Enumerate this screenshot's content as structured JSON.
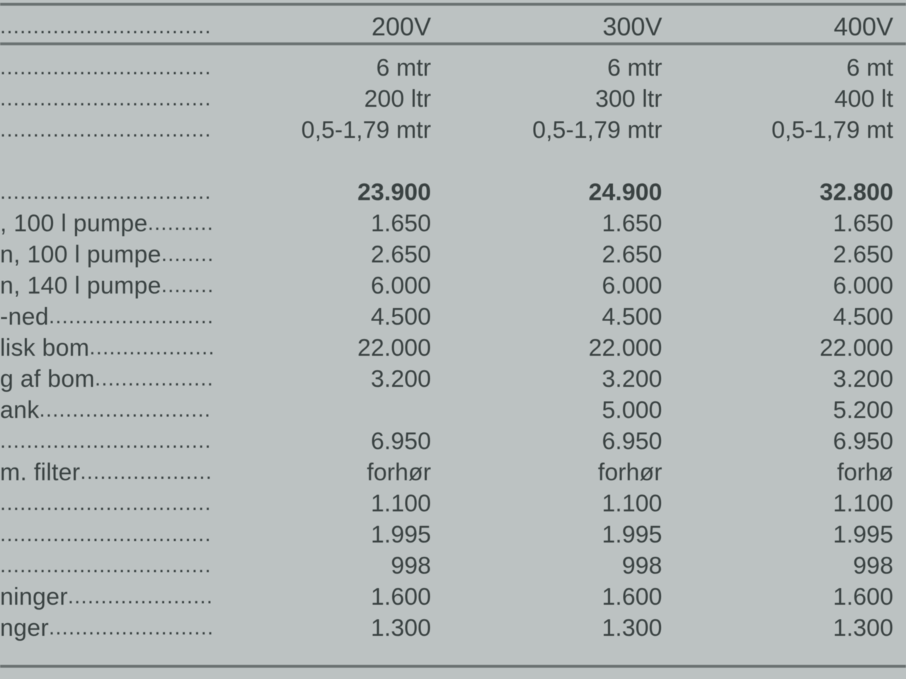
{
  "table": {
    "type": "table",
    "background_color": "#bcc2c2",
    "text_color": "#3a4242",
    "rule_color": "#6a7272",
    "font_family": "Arial",
    "header_fontsize_pt": 27,
    "body_fontsize_pt": 25,
    "columns": [
      "label",
      "200V",
      "300V",
      "400V"
    ],
    "header": {
      "col1": "200V",
      "col2": "300V",
      "col3": "400V"
    },
    "specs": [
      {
        "label": "",
        "v1": "6 mtr",
        "v2": "6 mtr",
        "v3": "6 mt"
      },
      {
        "label": "",
        "v1": "200 ltr",
        "v2": "300 ltr",
        "v3": "400 lt"
      },
      {
        "label": "",
        "v1": "0,5-1,79 mtr",
        "v2": "0,5-1,79 mtr",
        "v3": "0,5-1,79 mt"
      }
    ],
    "prices": [
      {
        "label": "",
        "v1": "23.900",
        "v2": "24.900",
        "v3": "32.800",
        "bold": true
      },
      {
        "label": ", 100 l pumpe",
        "v1": "1.650",
        "v2": "1.650",
        "v3": "1.650"
      },
      {
        "label": "n, 100 l pumpe",
        "v1": "2.650",
        "v2": "2.650",
        "v3": "2.650"
      },
      {
        "label": "n, 140 l pumpe",
        "v1": "6.000",
        "v2": "6.000",
        "v3": "6.000"
      },
      {
        "label": "-ned",
        "v1": "4.500",
        "v2": "4.500",
        "v3": "4.500"
      },
      {
        "label": "lisk bom",
        "v1": "22.000",
        "v2": "22.000",
        "v3": "22.000"
      },
      {
        "label": "g af bom",
        "v1": "3.200",
        "v2": "3.200",
        "v3": "3.200"
      },
      {
        "label": "ank",
        "v1": "",
        "v2": "5.000",
        "v3": "5.200"
      },
      {
        "label": "",
        "v1": "6.950",
        "v2": "6.950",
        "v3": "6.950"
      },
      {
        "label": "m. filter",
        "v1": "forhør",
        "v2": "forhør",
        "v3": "forhø"
      },
      {
        "label": "",
        "v1": "1.100",
        "v2": "1.100",
        "v3": "1.100"
      },
      {
        "label": "",
        "v1": "1.995",
        "v2": "1.995",
        "v3": "1.995"
      },
      {
        "label": "",
        "v1": "998",
        "v2": "998",
        "v3": "998"
      },
      {
        "label": "ninger",
        "v1": "1.600",
        "v2": "1.600",
        "v3": "1.600"
      },
      {
        "label": "nger",
        "v1": "1.300",
        "v2": "1.300",
        "v3": "1.300"
      }
    ],
    "leader_char": "."
  }
}
